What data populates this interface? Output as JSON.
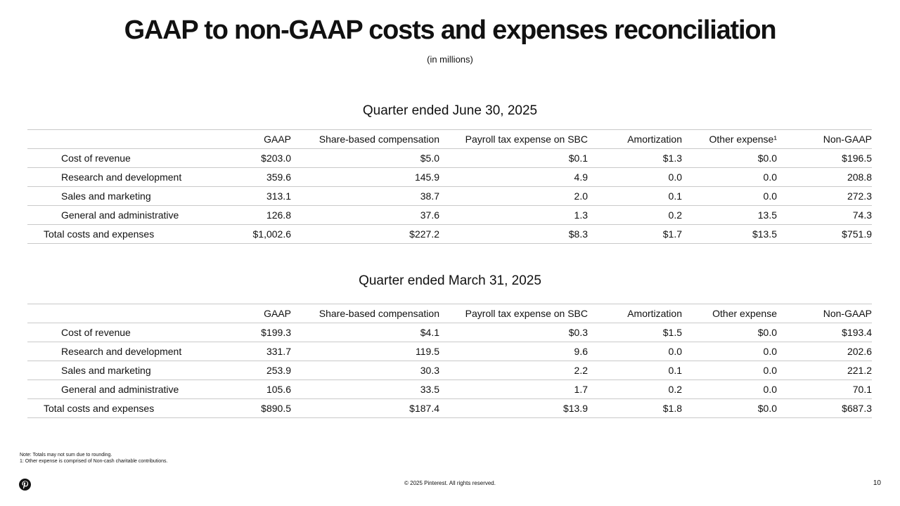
{
  "page": {
    "title": "GAAP to non-GAAP costs and expenses reconciliation",
    "subtitle": "(in millions)"
  },
  "tables": [
    {
      "heading": "Quarter ended June 30, 2025",
      "columns": [
        "",
        "GAAP",
        "Share-based compensation",
        "Payroll tax expense on SBC",
        "Amortization",
        "Other expense¹",
        "Non-GAAP"
      ],
      "rows": [
        [
          "Cost of revenue",
          "$203.0",
          "$5.0",
          "$0.1",
          "$1.3",
          "$0.0",
          "$196.5"
        ],
        [
          "Research and development",
          "359.6",
          "145.9",
          "4.9",
          "0.0",
          "0.0",
          "208.8"
        ],
        [
          "Sales and marketing",
          "313.1",
          "38.7",
          "2.0",
          "0.1",
          "0.0",
          "272.3"
        ],
        [
          "General and administrative",
          "126.8",
          "37.6",
          "1.3",
          "0.2",
          "13.5",
          "74.3"
        ],
        [
          "Total costs and expenses",
          "$1,002.6",
          "$227.2",
          "$8.3",
          "$1.7",
          "$13.5",
          "$751.9"
        ]
      ]
    },
    {
      "heading": "Quarter ended March 31, 2025",
      "columns": [
        "",
        "GAAP",
        "Share-based compensation",
        "Payroll tax expense on SBC",
        "Amortization",
        "Other expense",
        "Non-GAAP"
      ],
      "rows": [
        [
          "Cost of revenue",
          "$199.3",
          "$4.1",
          "$0.3",
          "$1.5",
          "$0.0",
          "$193.4"
        ],
        [
          "Research and development",
          "331.7",
          "119.5",
          "9.6",
          "0.0",
          "0.0",
          "202.6"
        ],
        [
          "Sales and marketing",
          "253.9",
          "30.3",
          "2.2",
          "0.1",
          "0.0",
          "221.2"
        ],
        [
          "General and administrative",
          "105.6",
          "33.5",
          "1.7",
          "0.2",
          "0.0",
          "70.1"
        ],
        [
          "Total costs and expenses",
          "$890.5",
          "$187.4",
          "$13.9",
          "$1.8",
          "$0.0",
          "$687.3"
        ]
      ]
    }
  ],
  "footer": {
    "notes": [
      "Note: Totals may not sum due to rounding.",
      "1: Other expense is comprised of Non-cash charitable contributions."
    ],
    "copyright": "© 2025 Pinterest. All rights reserved.",
    "page_number": "10",
    "logo_icon": "pinterest-logo-icon",
    "brand_color": "#111111"
  }
}
